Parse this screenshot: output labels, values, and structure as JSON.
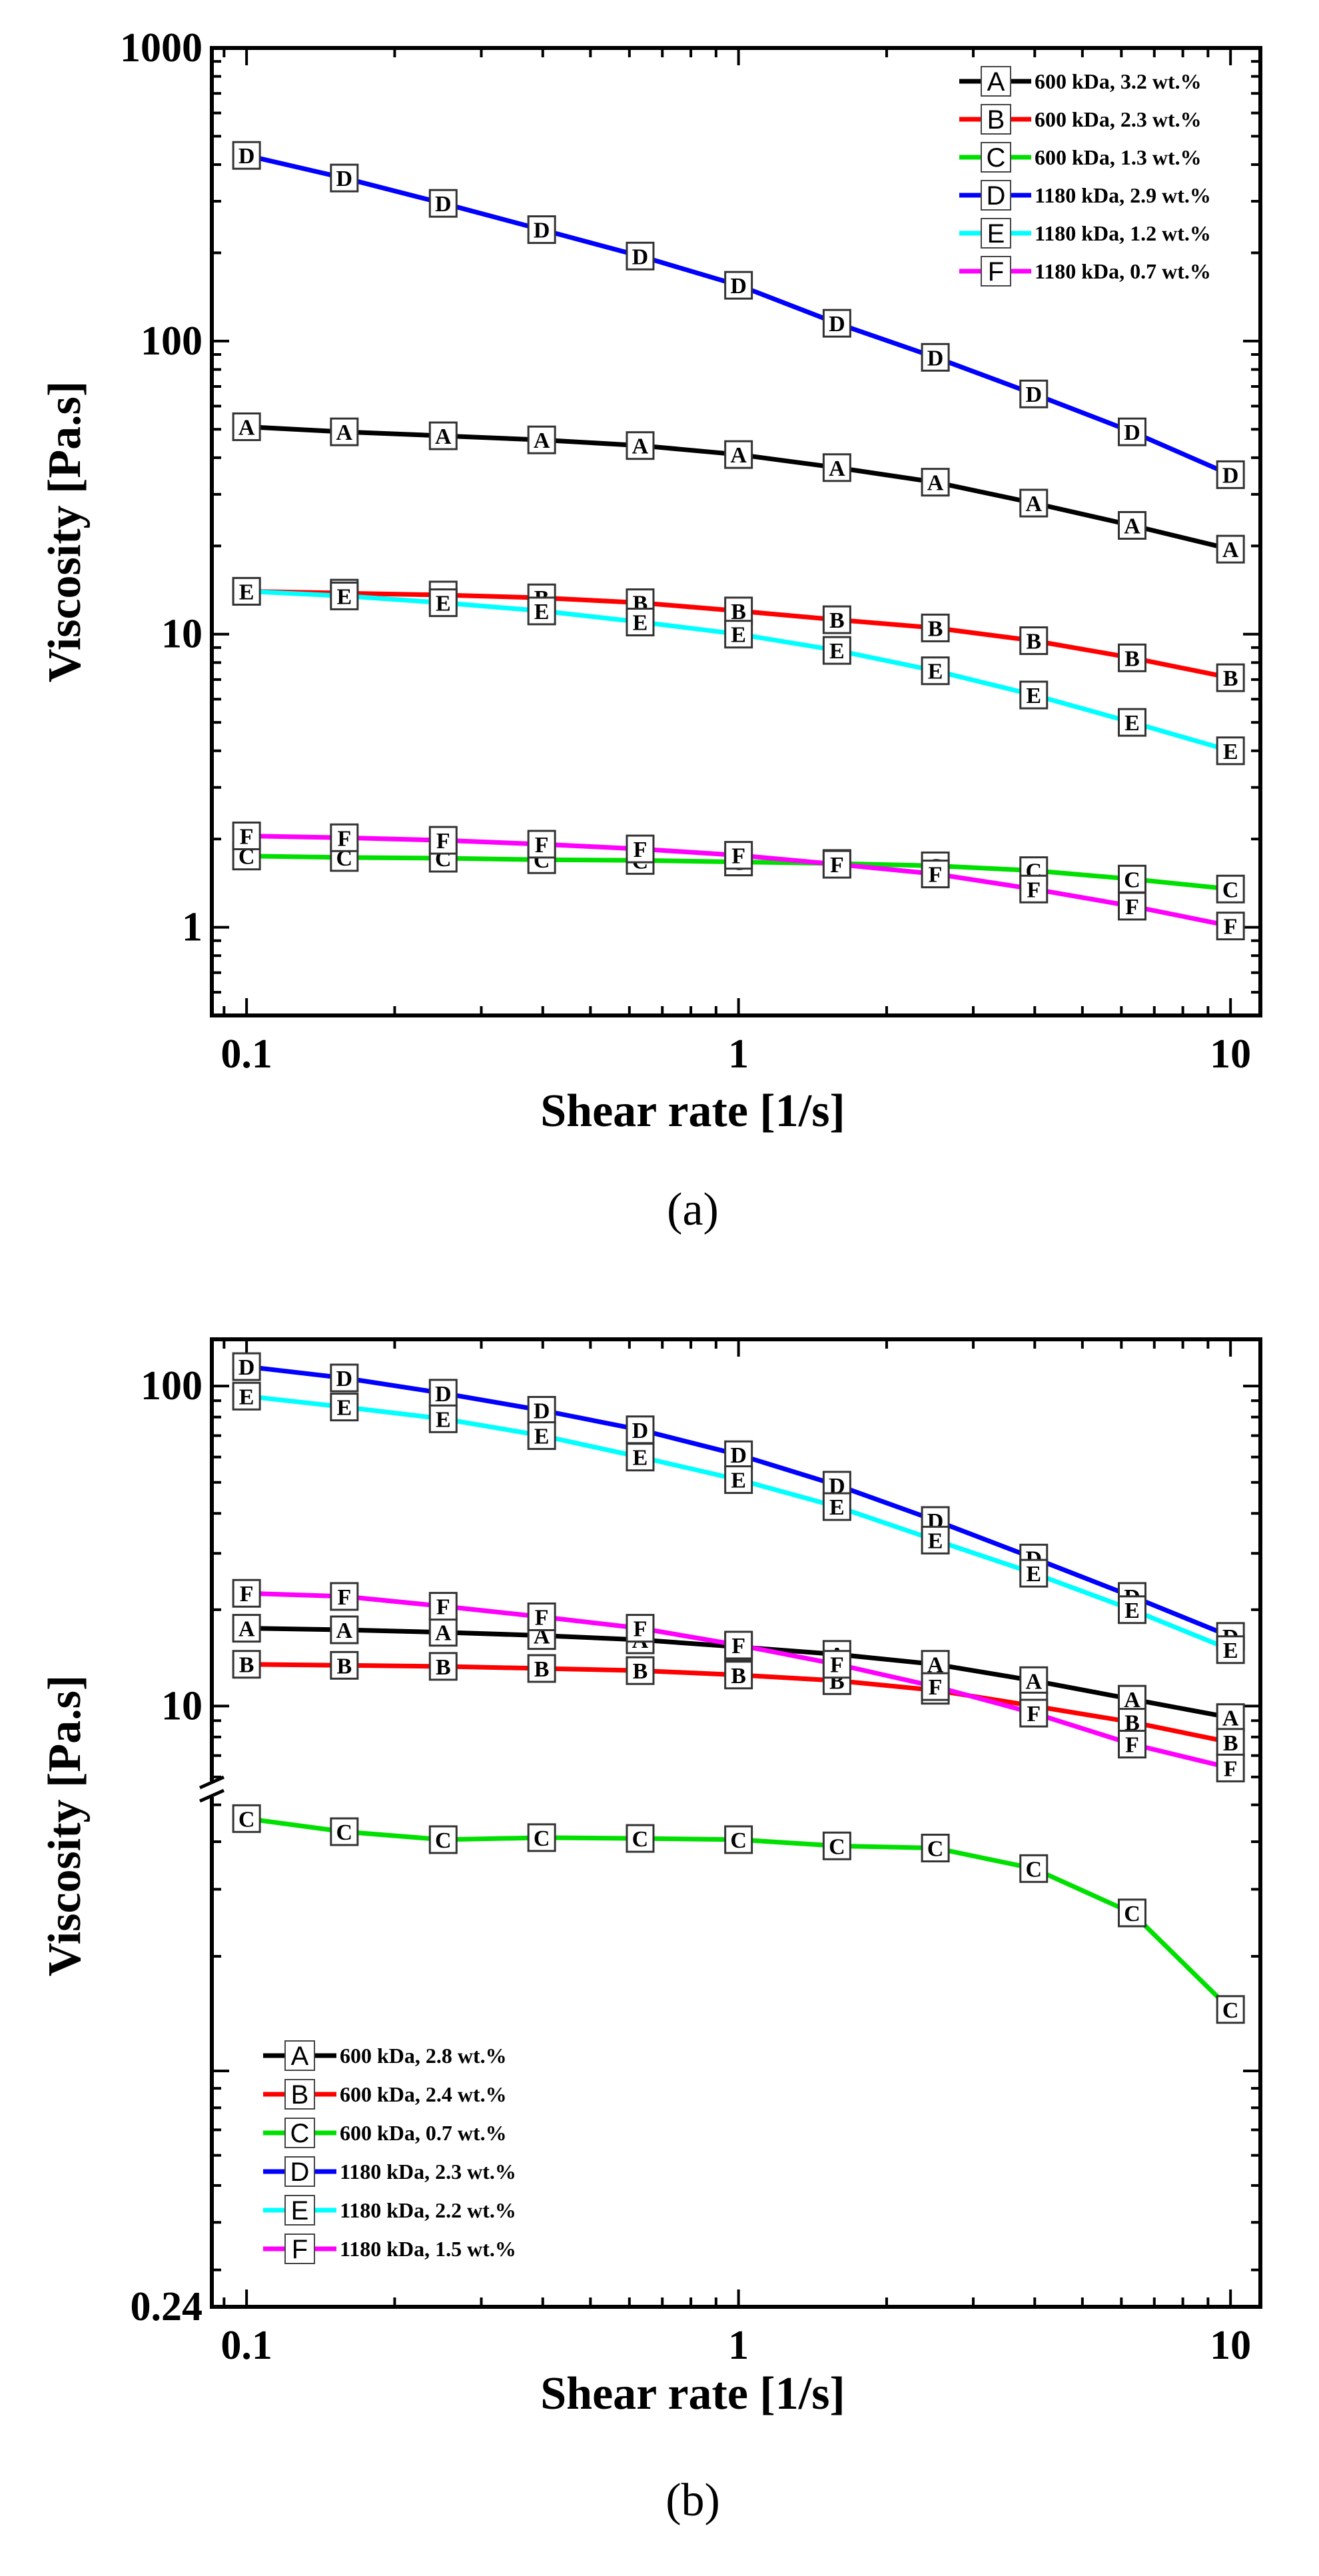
{
  "chart_data": [
    {
      "type": "line",
      "caption": "(a)",
      "xlabel": "Shear rate [1/s]",
      "ylabel": "Viscosity [Pa.s]",
      "xscale": "log",
      "yscale": "log",
      "xlim": [
        0.085,
        11.5
      ],
      "ylim": [
        0.5,
        1000
      ],
      "x_tick_labels": [
        "0.1",
        "1",
        "10"
      ],
      "y_tick_labels": [
        "1",
        "10",
        "100",
        "1000"
      ],
      "legend_position": "top-right",
      "x": [
        0.1,
        0.158,
        0.251,
        0.398,
        0.631,
        1.0,
        1.585,
        2.512,
        3.981,
        6.31,
        10.0
      ],
      "series": [
        {
          "marker": "A",
          "name": "600 kDa, 3.2 wt.%",
          "color": "#000000",
          "values": [
            51,
            49,
            47.5,
            46,
            44,
            41,
            37,
            33,
            28,
            23.5,
            19.5
          ]
        },
        {
          "marker": "B",
          "name": "600 kDa, 2.3 wt.%",
          "color": "#ff0000",
          "values": [
            14,
            13.8,
            13.6,
            13.3,
            12.8,
            12.0,
            11.2,
            10.5,
            9.5,
            8.3,
            7.1
          ]
        },
        {
          "marker": "C",
          "name": "600 kDa, 1.3 wt.%",
          "color": "#00e000",
          "values": [
            1.75,
            1.73,
            1.72,
            1.7,
            1.69,
            1.67,
            1.65,
            1.62,
            1.56,
            1.46,
            1.35
          ]
        },
        {
          "marker": "D",
          "name": "1180 kDa, 2.9 wt.%",
          "color": "#0000ff",
          "values": [
            430,
            360,
            295,
            240,
            195,
            155,
            115,
            88,
            66,
            49,
            35
          ]
        },
        {
          "marker": "E",
          "name": "1180 kDa, 1.2 wt.%",
          "color": "#00ffff",
          "values": [
            14,
            13.5,
            12.8,
            12.0,
            11.0,
            10.0,
            8.8,
            7.5,
            6.2,
            5.0,
            4.0
          ]
        },
        {
          "marker": "F",
          "name": "1180 kDa, 0.7 wt.%",
          "color": "#ff00ff",
          "values": [
            2.05,
            2.02,
            1.98,
            1.92,
            1.85,
            1.76,
            1.64,
            1.52,
            1.35,
            1.18,
            1.01
          ]
        }
      ]
    },
    {
      "type": "line",
      "caption": "(b)",
      "xlabel": "Shear rate [1/s]",
      "ylabel": "Viscosity [Pa.s]",
      "xscale": "log",
      "yscale": "log-broken",
      "xlim": [
        0.085,
        11.5
      ],
      "ylim_upper": [
        5.5,
        140
      ],
      "ylim_lower": [
        0.24,
        5.5
      ],
      "axis_break_at": 5.5,
      "x_tick_labels": [
        "0.1",
        "1",
        "10"
      ],
      "y_tick_labels": [
        "0.24",
        "10",
        "100"
      ],
      "legend_position": "bottom-left",
      "x": [
        0.1,
        0.158,
        0.251,
        0.398,
        0.631,
        1.0,
        1.585,
        2.512,
        3.981,
        6.31,
        10.0
      ],
      "series": [
        {
          "marker": "A",
          "name": "600 kDa, 2.8 wt.%",
          "color": "#000000",
          "values": [
            17.5,
            17.3,
            17.0,
            16.6,
            16.1,
            15.3,
            14.5,
            13.5,
            12.0,
            10.5,
            9.2
          ]
        },
        {
          "marker": "B",
          "name": "600 kDa, 2.4 wt.%",
          "color": "#ff0000",
          "values": [
            13.5,
            13.4,
            13.3,
            13.1,
            12.9,
            12.5,
            12.0,
            11.2,
            10.0,
            8.9,
            7.7
          ]
        },
        {
          "marker": "C",
          "name": "600 kDa, 0.7 wt.%",
          "color": "#00e000",
          "values": [
            4.6,
            4.25,
            4.05,
            4.1,
            4.08,
            4.05,
            3.9,
            3.85,
            3.4,
            2.6,
            1.45
          ]
        },
        {
          "marker": "D",
          "name": "1180 kDa, 2.3 wt.%",
          "color": "#0000ff",
          "values": [
            115,
            106,
            95,
            84,
            73,
            61,
            49,
            38,
            29,
            22,
            16.5
          ]
        },
        {
          "marker": "E",
          "name": "1180 kDa, 2.2 wt.%",
          "color": "#00ffff",
          "values": [
            93,
            86,
            79,
            70,
            60,
            51,
            42,
            33,
            26,
            20,
            15
          ]
        },
        {
          "marker": "F",
          "name": "1180 kDa, 1.5 wt.%",
          "color": "#ff00ff",
          "values": [
            22.5,
            22,
            20.5,
            19,
            17.5,
            15.5,
            13.5,
            11.5,
            9.5,
            7.6,
            6.4
          ]
        }
      ]
    }
  ]
}
